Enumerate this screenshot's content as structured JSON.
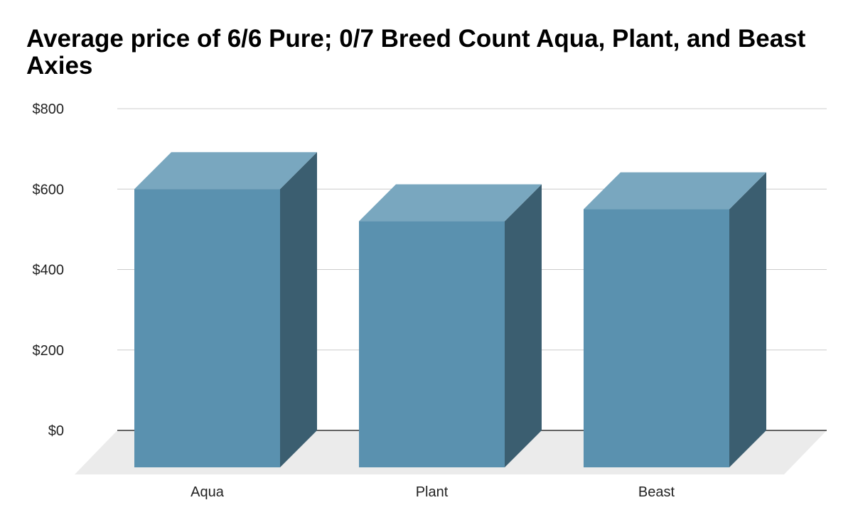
{
  "chart_data": {
    "type": "bar",
    "style": "3d",
    "title": "Average price of 6/6 Pure; 0/7 Breed Count Aqua, Plant, and Beast Axies",
    "categories": [
      "Aqua",
      "Plant",
      "Beast"
    ],
    "values": [
      600,
      520,
      550
    ],
    "xlabel": "",
    "ylabel": "",
    "ylim": [
      0,
      800
    ],
    "yticks": [
      0,
      200,
      400,
      600,
      800
    ],
    "ytick_labels": [
      "$0",
      "$200",
      "$400",
      "$600",
      "$800"
    ],
    "grid": true,
    "legend": "none",
    "colors": {
      "bar_front": "#5a91af",
      "bar_top": "#79a7bf",
      "bar_side": "#3b5e70",
      "floor": "#ebebeb",
      "gridline": "#cccccc",
      "baseline": "#333333"
    }
  }
}
